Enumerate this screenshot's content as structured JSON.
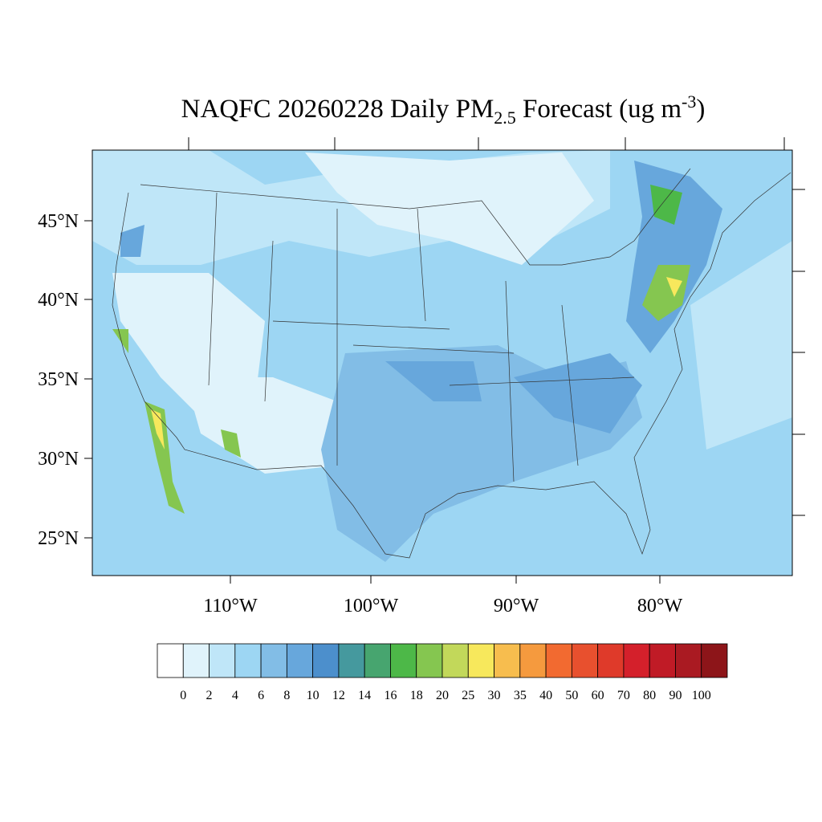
{
  "title": {
    "main": "NAQFC 20260228 Daily PM",
    "sub": "2.5",
    "rest": " Forecast (ug m",
    "sup": "-3",
    "close": ")"
  },
  "map": {
    "lat_labels": [
      "45°N",
      "40°N",
      "35°N",
      "30°N",
      "25°N"
    ],
    "lon_labels": [
      "110°W",
      "100°W",
      "90°W",
      "80°W"
    ]
  },
  "colorbar": {
    "levels": [
      0,
      2,
      4,
      6,
      8,
      10,
      12,
      14,
      16,
      18,
      20,
      25,
      30,
      35,
      40,
      50,
      60,
      70,
      80,
      90,
      100
    ],
    "colors": [
      "#ffffff",
      "#e0f3fb",
      "#bfe6f8",
      "#9dd6f3",
      "#82bde6",
      "#67a7dc",
      "#4c8fcc",
      "#45999e",
      "#47a56f",
      "#4db848",
      "#85c650",
      "#c2d85a",
      "#f7e85c",
      "#f7bd4e",
      "#f59a3e",
      "#f26a30",
      "#e8502e",
      "#df3a2a",
      "#d4202b",
      "#c01b26",
      "#aa1a22",
      "#8d1519"
    ]
  }
}
